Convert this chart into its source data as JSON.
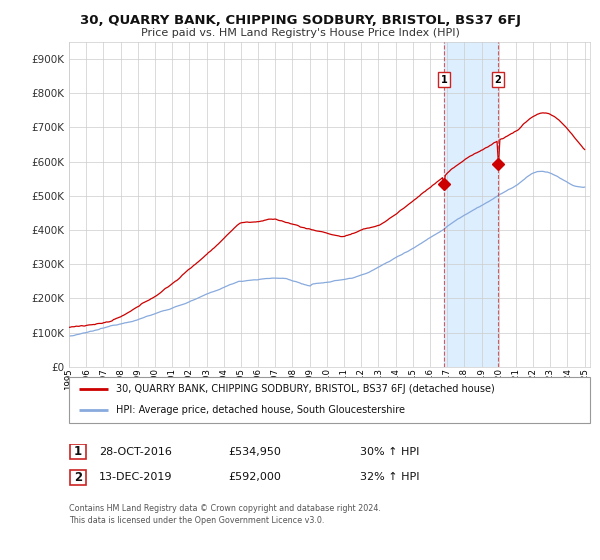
{
  "title": "30, QUARRY BANK, CHIPPING SODBURY, BRISTOL, BS37 6FJ",
  "subtitle": "Price paid vs. HM Land Registry's House Price Index (HPI)",
  "legend_line1": "30, QUARRY BANK, CHIPPING SODBURY, BRISTOL, BS37 6FJ (detached house)",
  "legend_line2": "HPI: Average price, detached house, South Gloucestershire",
  "sale1_date": "28-OCT-2016",
  "sale1_price": 534950,
  "sale1_label": "30% ↑ HPI",
  "sale2_date": "13-DEC-2019",
  "sale2_price": 592000,
  "sale2_label": "32% ↑ HPI",
  "footer": "Contains HM Land Registry data © Crown copyright and database right 2024.\nThis data is licensed under the Open Government Licence v3.0.",
  "red_color": "#cc0000",
  "blue_color": "#88aadd",
  "highlight_bg": "#ddeeff",
  "grid_color": "#cccccc",
  "ylim": [
    0,
    950000
  ],
  "yticks": [
    0,
    100000,
    200000,
    300000,
    400000,
    500000,
    600000,
    700000,
    800000,
    900000
  ],
  "xstart": 1995,
  "xend": 2025
}
